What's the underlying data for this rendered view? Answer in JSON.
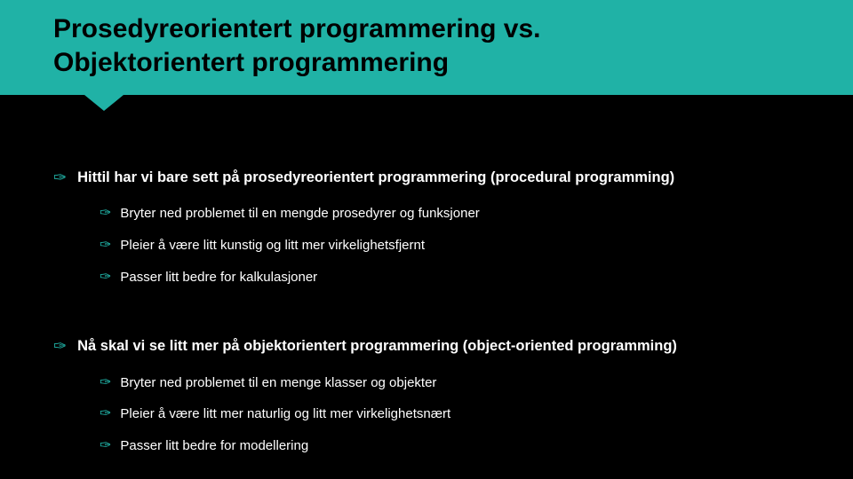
{
  "header": {
    "title_line1": "Prosedyreorientert programmering vs.",
    "title_line2": "Objektorientert programmering",
    "bg_color": "#20b2a6",
    "text_color": "#000000"
  },
  "body": {
    "bg_color": "#000000",
    "text_color": "#ffffff",
    "bullet_color": "#20b2a6",
    "bullet_glyph": "✑",
    "lvl1_fontsize": 16.5,
    "lvl2_fontsize": 15
  },
  "sections": [
    {
      "heading": "Hittil har vi bare sett på prosedyreorientert programmering (procedural programming)",
      "items": [
        "Bryter ned problemet til en mengde prosedyrer og funksjoner",
        "Pleier å være litt kunstig og litt mer virkelighetsfjernt",
        "Passer litt bedre for kalkulasjoner"
      ]
    },
    {
      "heading": "Nå skal vi se litt mer på objektorientert programmering (object-oriented programming)",
      "items": [
        "Bryter ned problemet til en menge klasser og objekter",
        "Pleier å være litt mer naturlig og litt mer virkelighetsnært",
        "Passer litt bedre for modellering"
      ]
    }
  ]
}
